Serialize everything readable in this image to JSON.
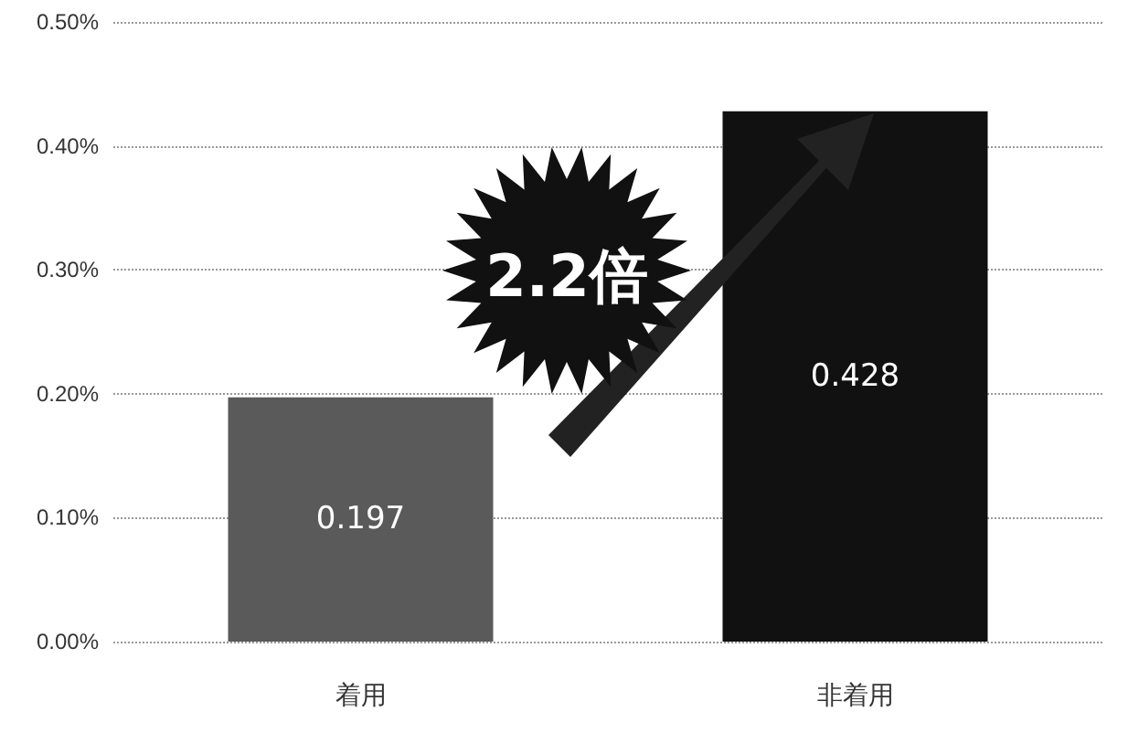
{
  "chart_data": {
    "type": "bar",
    "categories": [
      "着用",
      "非着用"
    ],
    "values": [
      0.197,
      0.428
    ],
    "colors": [
      "#5a5a5a",
      "#111111"
    ],
    "ylim": [
      0,
      0.5
    ],
    "yticks": [
      {
        "value": 0,
        "label": "0.00%"
      },
      {
        "value": 0.1,
        "label": "0.10%"
      },
      {
        "value": 0.2,
        "label": "0.20%"
      },
      {
        "value": 0.3,
        "label": "0.30%"
      },
      {
        "value": 0.4,
        "label": "0.40%"
      },
      {
        "value": 0.5,
        "label": "0.50%"
      }
    ],
    "grid": "y",
    "data_labels": true,
    "annotations": [
      "2.2倍"
    ]
  }
}
